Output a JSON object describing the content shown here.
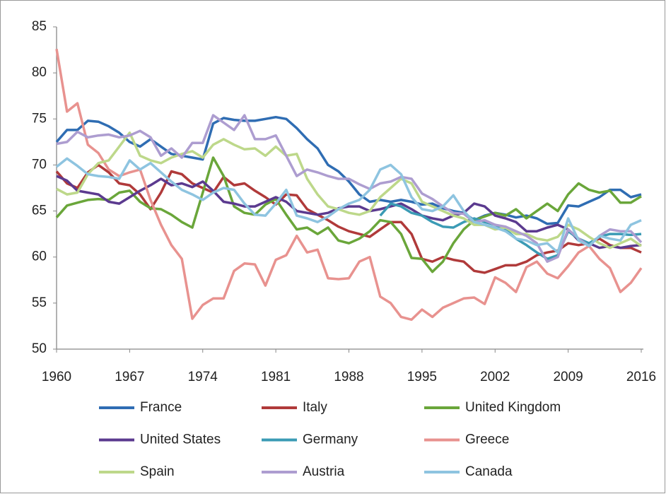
{
  "chart_data": {
    "type": "line",
    "x": [
      1960,
      1961,
      1962,
      1963,
      1964,
      1965,
      1966,
      1967,
      1968,
      1969,
      1970,
      1971,
      1972,
      1973,
      1974,
      1975,
      1976,
      1977,
      1978,
      1979,
      1980,
      1981,
      1982,
      1983,
      1984,
      1985,
      1986,
      1987,
      1988,
      1989,
      1990,
      1991,
      1992,
      1993,
      1994,
      1995,
      1996,
      1997,
      1998,
      1999,
      2000,
      2001,
      2002,
      2003,
      2004,
      2005,
      2006,
      2007,
      2008,
      2009,
      2010,
      2011,
      2012,
      2013,
      2014,
      2015,
      2016
    ],
    "xlim": [
      1960,
      2016
    ],
    "xticks": [
      1960,
      1967,
      1974,
      1981,
      1988,
      1995,
      2002,
      2009,
      2016
    ],
    "ylim": [
      50,
      85
    ],
    "yticks": [
      50,
      55,
      60,
      65,
      70,
      75,
      80,
      85
    ],
    "series": [
      {
        "name": "France",
        "color": "#2f6db3",
        "values": [
          72.5,
          73.8,
          73.8,
          74.8,
          74.7,
          74.2,
          73.5,
          72.5,
          72.0,
          72.8,
          72.0,
          71.2,
          71.0,
          70.8,
          70.6,
          74.5,
          75.1,
          74.9,
          74.8,
          74.8,
          75.0,
          75.2,
          75.0,
          74.0,
          72.8,
          71.8,
          70.0,
          69.3,
          68.2,
          66.8,
          66.0,
          66.2,
          66.0,
          66.2,
          66.0,
          65.7,
          65.8,
          65.3,
          65.0,
          64.8,
          64.0,
          64.5,
          64.8,
          64.6,
          64.3,
          64.5,
          64.2,
          63.6,
          63.7,
          65.6,
          65.5,
          66.0,
          66.5,
          67.3,
          67.3,
          66.5,
          66.8
        ]
      },
      {
        "name": "Italy",
        "color": "#b03a3a",
        "values": [
          69.3,
          68.0,
          67.5,
          69.2,
          70.0,
          69.2,
          68.0,
          67.8,
          66.8,
          65.2,
          67.0,
          69.3,
          69.0,
          68.0,
          67.5,
          67.0,
          68.7,
          67.8,
          68.0,
          67.2,
          66.5,
          65.7,
          66.8,
          66.7,
          65.2,
          64.6,
          64.0,
          63.3,
          62.8,
          62.5,
          62.2,
          63.0,
          63.8,
          63.8,
          62.5,
          59.8,
          59.5,
          60.0,
          59.7,
          59.5,
          58.5,
          58.3,
          58.7,
          59.1,
          59.1,
          59.5,
          60.2,
          60.5,
          60.7,
          61.5,
          61.3,
          61.5,
          62.0,
          61.3,
          61.0,
          61.0,
          60.5
        ]
      },
      {
        "name": "United Kingdom",
        "color": "#6aa63a",
        "values": [
          64.3,
          65.6,
          65.9,
          66.2,
          66.3,
          66.2,
          67.0,
          67.2,
          66.0,
          65.3,
          65.2,
          64.6,
          63.8,
          63.2,
          67.0,
          70.8,
          68.8,
          65.5,
          64.8,
          64.6,
          65.7,
          66.3,
          64.6,
          63.0,
          63.2,
          62.5,
          63.2,
          61.8,
          61.5,
          62.0,
          62.8,
          64.0,
          63.8,
          62.5,
          59.9,
          59.8,
          58.4,
          59.5,
          61.5,
          63.0,
          64.0,
          64.4,
          64.8,
          64.5,
          65.2,
          64.2,
          65.0,
          65.8,
          65.0,
          66.8,
          68.0,
          67.3,
          67.0,
          67.2,
          65.9,
          65.9,
          66.6
        ]
      },
      {
        "name": "United States",
        "color": "#5b3a8f",
        "values": [
          68.8,
          68.3,
          67.2,
          67.0,
          66.8,
          66.0,
          65.8,
          66.5,
          67.2,
          67.8,
          68.5,
          67.8,
          68.0,
          67.6,
          68.2,
          67.2,
          66.0,
          65.8,
          65.5,
          65.5,
          66.0,
          66.5,
          66.0,
          65.0,
          64.8,
          64.6,
          64.8,
          65.3,
          65.5,
          65.5,
          65.0,
          65.2,
          65.5,
          65.8,
          65.2,
          64.5,
          64.2,
          64.0,
          64.5,
          64.8,
          65.8,
          65.5,
          64.5,
          64.2,
          63.8,
          62.8,
          62.8,
          63.2,
          63.5,
          63.0,
          61.8,
          61.5,
          61.0,
          61.2,
          61.0,
          61.2,
          61.3
        ]
      },
      {
        "name": "Germany",
        "color": "#3b9bb5",
        "values": [
          null,
          null,
          null,
          null,
          null,
          null,
          null,
          null,
          null,
          null,
          null,
          null,
          null,
          null,
          null,
          null,
          null,
          null,
          null,
          null,
          null,
          null,
          null,
          null,
          null,
          null,
          null,
          null,
          null,
          null,
          null,
          64.5,
          65.8,
          65.5,
          64.8,
          64.5,
          63.8,
          63.3,
          63.2,
          63.8,
          64.2,
          63.8,
          63.5,
          63.0,
          62.0,
          61.3,
          60.5,
          59.8,
          60.2,
          62.8,
          62.0,
          61.5,
          62.2,
          62.5,
          62.5,
          62.4,
          62.5
        ]
      },
      {
        "name": "Greece",
        "color": "#e8928f",
        "values": [
          82.6,
          75.8,
          76.7,
          72.2,
          71.3,
          69.5,
          68.8,
          69.2,
          69.5,
          66.2,
          63.5,
          61.3,
          59.8,
          53.3,
          54.8,
          55.5,
          55.5,
          58.5,
          59.3,
          59.2,
          56.9,
          59.7,
          60.2,
          62.3,
          60.5,
          60.8,
          57.7,
          57.6,
          57.7,
          59.5,
          60.0,
          55.7,
          55.0,
          53.5,
          53.2,
          54.3,
          53.5,
          54.5,
          55.0,
          55.5,
          55.6,
          54.9,
          57.8,
          57.2,
          56.2,
          58.9,
          59.5,
          58.2,
          57.7,
          59.0,
          60.5,
          61.2,
          59.8,
          58.8,
          56.2,
          57.2,
          58.8
        ]
      },
      {
        "name": "Spain",
        "color": "#bdd88a",
        "values": [
          67.4,
          66.8,
          67.0,
          69.0,
          70.2,
          70.5,
          72.0,
          73.5,
          71.0,
          70.5,
          70.2,
          70.8,
          71.2,
          71.5,
          70.8,
          72.2,
          72.8,
          72.2,
          71.7,
          71.8,
          71.0,
          72.0,
          71.0,
          71.2,
          68.5,
          66.8,
          65.5,
          65.2,
          64.8,
          64.6,
          65.0,
          66.5,
          67.5,
          68.5,
          68.0,
          66.0,
          65.5,
          65.0,
          64.5,
          64.2,
          63.5,
          63.5,
          63.0,
          63.2,
          62.5,
          62.5,
          62.0,
          61.8,
          62.2,
          63.5,
          63.0,
          62.2,
          61.5,
          61.0,
          61.5,
          62.0,
          61.2
        ]
      },
      {
        "name": "Austria",
        "color": "#ad9dd0",
        "values": [
          72.3,
          72.5,
          73.6,
          73.0,
          73.2,
          73.3,
          73.0,
          73.2,
          73.7,
          73.0,
          71.0,
          71.8,
          70.8,
          72.4,
          72.4,
          75.4,
          74.6,
          73.8,
          75.4,
          72.8,
          72.8,
          73.2,
          71.0,
          68.8,
          69.5,
          69.2,
          68.8,
          68.5,
          68.5,
          67.9,
          67.4,
          68.0,
          68.2,
          68.7,
          68.5,
          66.9,
          66.3,
          65.5,
          64.8,
          64.7,
          63.8,
          64.0,
          63.5,
          63.3,
          62.8,
          62.3,
          61.5,
          59.5,
          60.0,
          63.0,
          62.0,
          61.2,
          62.3,
          63.0,
          62.8,
          62.8,
          61.6
        ]
      },
      {
        "name": "Canada",
        "color": "#8ec4e0",
        "values": [
          69.8,
          70.7,
          69.9,
          69.0,
          68.8,
          68.7,
          68.5,
          70.5,
          69.5,
          70.2,
          69.2,
          68.2,
          67.3,
          66.8,
          66.2,
          67.0,
          67.5,
          67.3,
          65.8,
          64.6,
          64.5,
          65.8,
          67.3,
          64.5,
          64.2,
          63.8,
          64.4,
          65.2,
          65.8,
          66.2,
          67.3,
          69.5,
          70.0,
          69.0,
          66.5,
          65.2,
          65.0,
          65.5,
          66.7,
          65.0,
          63.8,
          63.5,
          63.2,
          62.8,
          62.0,
          61.8,
          61.3,
          61.5,
          60.5,
          64.2,
          61.8,
          61.2,
          62.3,
          62.0,
          61.8,
          63.5,
          64.0
        ]
      }
    ]
  }
}
